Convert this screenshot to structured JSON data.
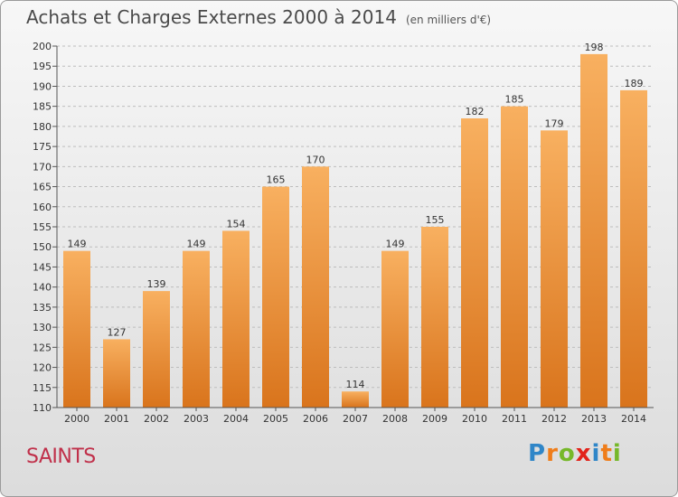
{
  "title": "Achats et Charges Externes 2000 à 2014",
  "subtitle": "(en milliers d'€)",
  "commune": "SAINTS",
  "logo": {
    "letters": [
      "P",
      "r",
      "o",
      "x",
      "i",
      "t",
      "i"
    ],
    "colors": [
      "#2f86c8",
      "#ef7d1a",
      "#76b82a",
      "#e2231a",
      "#2f86c8",
      "#ef7d1a",
      "#76b82a"
    ]
  },
  "colors": {
    "bar_light": "#f8b060",
    "bar_dark": "#d9741c",
    "grid": "#bdbdbd"
  },
  "chart_data": {
    "type": "bar",
    "categories": [
      "2000",
      "2001",
      "2002",
      "2003",
      "2004",
      "2005",
      "2006",
      "2007",
      "2008",
      "2009",
      "2010",
      "2011",
      "2012",
      "2013",
      "2014"
    ],
    "values": [
      149,
      127,
      139,
      149,
      154,
      165,
      170,
      114,
      149,
      155,
      182,
      185,
      179,
      198,
      189
    ],
    "ylim": [
      110,
      200
    ],
    "yticks": [
      110,
      115,
      120,
      125,
      130,
      135,
      140,
      145,
      150,
      155,
      160,
      165,
      170,
      175,
      180,
      185,
      190,
      195,
      200
    ],
    "grid": true,
    "xlabel": "",
    "ylabel": ""
  }
}
